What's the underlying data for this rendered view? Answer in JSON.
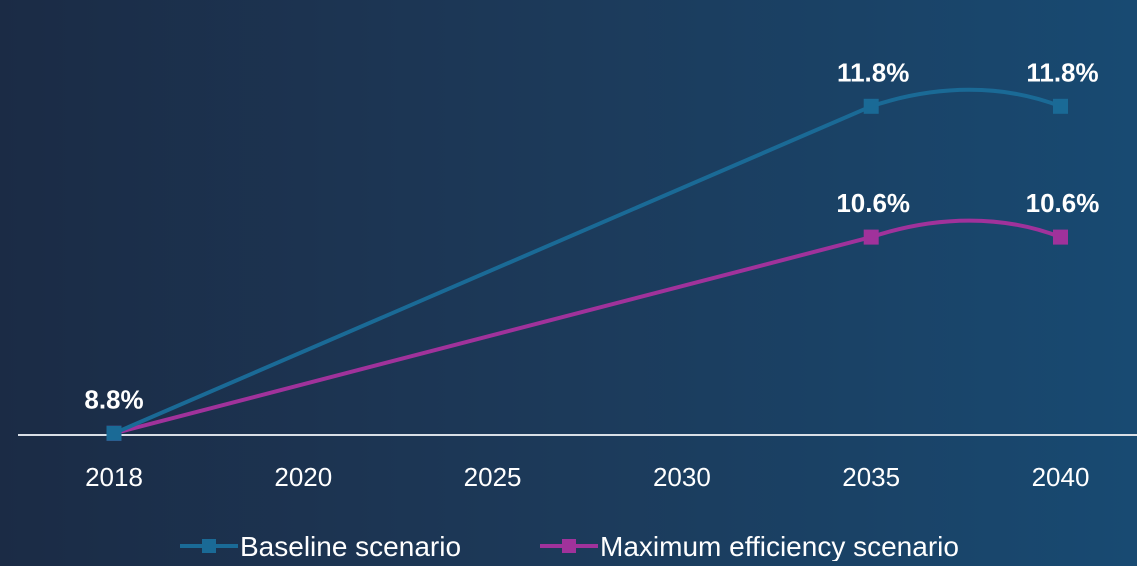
{
  "chart_data": {
    "type": "line",
    "categories": [
      "2018",
      "2020",
      "2025",
      "2030",
      "2035",
      "2040"
    ],
    "series": [
      {
        "name": "Baseline scenario",
        "color": "#1a6a96",
        "marker": "square",
        "points": [
          {
            "x": "2018",
            "y": 8.8,
            "label": "8.8%"
          },
          {
            "x": "2035",
            "y": 11.8,
            "label": "11.8%"
          },
          {
            "x": "2040",
            "y": 11.8,
            "label": "11.8%"
          }
        ]
      },
      {
        "name": "Maximum efficiency scenario",
        "color": "#a0329b",
        "marker": "square",
        "points": [
          {
            "x": "2018",
            "y": 8.8,
            "label": ""
          },
          {
            "x": "2035",
            "y": 10.6,
            "label": "10.6%"
          },
          {
            "x": "2040",
            "y": 10.6,
            "label": "10.6%"
          }
        ]
      }
    ],
    "title": "",
    "xlabel": "",
    "ylabel": "",
    "ylim": [
      7.0,
      12.5
    ],
    "grid": false,
    "legend_position": "bottom",
    "unit": "%"
  }
}
